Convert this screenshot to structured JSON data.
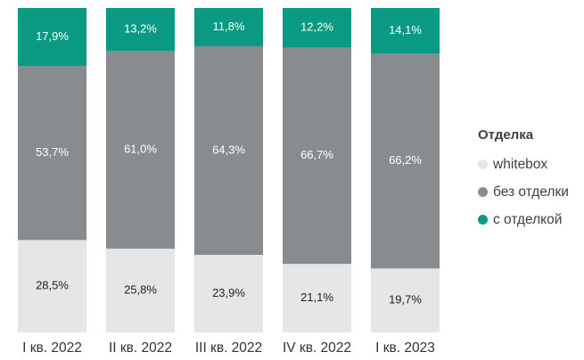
{
  "chart_data": {
    "type": "bar",
    "stacked": true,
    "normalized": true,
    "categories": [
      "I кв. 2022",
      "II кв. 2022",
      "III кв. 2022",
      "IV кв. 2022",
      "I кв. 2023"
    ],
    "series": [
      {
        "name": "whitebox",
        "color": "#e5e6e7",
        "label_color": "#222222",
        "values": [
          28.5,
          25.8,
          23.9,
          21.1,
          19.7
        ],
        "labels": [
          "28,5%",
          "25,8%",
          "23,9%",
          "21,1%",
          "19,7%"
        ]
      },
      {
        "name": "без отделки",
        "color": "#898c8f",
        "label_color": "#ffffff",
        "values": [
          53.7,
          61.0,
          64.3,
          66.7,
          66.2
        ],
        "labels": [
          "53,7%",
          "61,0%",
          "64,3%",
          "66,7%",
          "66,2%"
        ]
      },
      {
        "name": "с отделкой",
        "color": "#0a9a83",
        "label_color": "#ffffff",
        "values": [
          17.9,
          13.2,
          11.8,
          12.2,
          14.1
        ],
        "labels": [
          "17,9%",
          "13,2%",
          "11,8%",
          "12,2%",
          "14,1%"
        ]
      }
    ],
    "legend": {
      "title": "Отделка",
      "position": "right",
      "order": [
        0,
        1,
        2
      ]
    },
    "ylim": [
      0,
      100
    ],
    "grid": false
  }
}
